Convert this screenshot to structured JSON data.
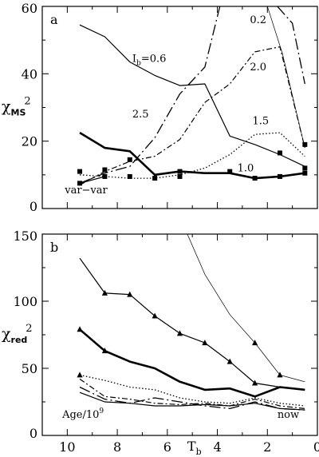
{
  "chart_data": [
    {
      "type": "line",
      "panel_label": "a",
      "ylabel_main": "χ",
      "ylabel_sub": "MS",
      "ylabel_sup": "2",
      "xlim": [
        11,
        0
      ],
      "ylim": [
        0,
        60
      ],
      "yticks": [
        "0",
        "20",
        "40",
        "60"
      ],
      "grid": false,
      "series": [
        {
          "name": "0.6",
          "style": "solid-thin",
          "x": [
            9.5,
            8.5,
            7.5,
            6.5,
            5.5,
            4.5,
            3.5,
            2.5,
            1.5,
            0.5
          ],
          "y": [
            54.5,
            51,
            43.5,
            39.5,
            36.5,
            37,
            21.5,
            19,
            16,
            12.5
          ]
        },
        {
          "name": "2.5",
          "style": "dashdot-long",
          "x": [
            9.5,
            8.5,
            7.5,
            6.5,
            5.5,
            4.5,
            3.9
          ],
          "y": [
            7.5,
            10.5,
            12.5,
            21,
            34,
            42,
            60
          ]
        },
        {
          "name": "2.0",
          "style": "dashdot",
          "x": [
            9.5,
            8.5,
            7.5,
            6.5,
            5.5,
            4.5,
            3.5,
            2.5,
            1.5,
            0.5
          ],
          "y": [
            7,
            11,
            14,
            15.5,
            20.5,
            31.5,
            37,
            46.5,
            48,
            18
          ]
        },
        {
          "name": "0.2",
          "style": "solid-hairline",
          "x": [
            2.9,
            2.0,
            1.4,
            0.5
          ],
          "y": [
            60,
            60,
            46,
            18
          ]
        },
        {
          "name": "",
          "style": "dashdot-long",
          "x": [
            1.6,
            1.0,
            0.5
          ],
          "y": [
            60,
            55,
            37
          ]
        },
        {
          "name": "1.5",
          "style": "dotted",
          "x": [
            9.5,
            8.5,
            7.5,
            6.5,
            5.5,
            4.5,
            3.5,
            2.5,
            1.5,
            0.5
          ],
          "y": [
            10,
            9.5,
            9,
            9,
            10,
            12,
            16,
            22,
            22.5,
            15.5
          ]
        },
        {
          "name": "1.0",
          "style": "solid-thick",
          "x": [
            9.5,
            8.5,
            7.5,
            6.5,
            5.5,
            4.5,
            3.5,
            2.5,
            1.5,
            0.5
          ],
          "y": [
            22.5,
            18,
            17,
            10,
            11,
            10.5,
            10.5,
            9,
            9.5,
            10.5
          ]
        },
        {
          "name": "var-var",
          "style": "solid-thin",
          "x": [
            9.5,
            8.5
          ],
          "y": [
            7.5,
            9.5
          ]
        }
      ],
      "markers": {
        "square": [
          [
            9.5,
            11
          ],
          [
            9.5,
            7.5
          ],
          [
            8.5,
            11.5
          ],
          [
            8.5,
            9.5
          ],
          [
            7.5,
            14.5
          ],
          [
            7.5,
            9.5
          ],
          [
            6.5,
            9
          ],
          [
            5.5,
            9.5
          ],
          [
            5.5,
            11
          ],
          [
            3.5,
            11
          ],
          [
            2.5,
            9
          ],
          [
            1.5,
            16.5
          ],
          [
            1.5,
            9.5
          ],
          [
            0.5,
            19
          ],
          [
            0.5,
            12
          ],
          [
            0.5,
            10.5
          ]
        ]
      },
      "annotations": [
        {
          "text": "I",
          "sub": "b",
          "rest": "=0.6",
          "x": 7.4,
          "y": 43.5
        },
        {
          "text": "2.5",
          "x": 7.4,
          "y": 27
        },
        {
          "text": "2.0",
          "x": 2.7,
          "y": 41
        },
        {
          "text": "0.2",
          "x": 2.7,
          "y": 55
        },
        {
          "text": "1.5",
          "x": 2.6,
          "y": 25
        },
        {
          "text": "1.0",
          "x": 3.2,
          "y": 11
        },
        {
          "text": "var−var",
          "x": 10.1,
          "y": 4.5
        }
      ]
    },
    {
      "type": "line",
      "panel_label": "b",
      "ylabel_main": "χ",
      "ylabel_sub": "red",
      "ylabel_sup": "2",
      "xlabel_main": "T",
      "xlabel_sub": "b",
      "xlim": [
        11,
        0
      ],
      "ylim": [
        0,
        150
      ],
      "xticks": [
        "10",
        "8",
        "6",
        "4",
        "2",
        "0"
      ],
      "yticks": [
        "0",
        "50",
        "100",
        "150"
      ],
      "grid": false,
      "series": [
        {
          "name": "triangle-solid-thin",
          "style": "solid-thin",
          "x": [
            9.5,
            8.5,
            7.5,
            6.5,
            5.5,
            4.5,
            3.5,
            2.5,
            1.5,
            0.5
          ],
          "y": [
            132,
            106,
            105,
            89,
            76,
            69,
            55,
            39,
            36,
            34
          ]
        },
        {
          "name": "triangle-solid-thick",
          "style": "solid-thick",
          "x": [
            9.5,
            8.5,
            7.5,
            6.5,
            5.5,
            4.5,
            3.5,
            2.5,
            1.5,
            0.5
          ],
          "y": [
            79,
            63,
            55,
            50,
            40,
            34,
            35,
            29,
            36,
            34
          ]
        },
        {
          "name": "hairline",
          "style": "solid-hairline",
          "x": [
            5.2,
            4.5,
            3.5,
            2.5,
            1.5,
            0.5
          ],
          "y": [
            150,
            120,
            90,
            69,
            45,
            40
          ]
        },
        {
          "name": "dotted",
          "style": "dotted",
          "x": [
            9.5,
            8.5,
            7.5,
            6.5,
            5.5,
            4.5,
            3.5,
            2.5,
            1.5,
            0.5
          ],
          "y": [
            45,
            41,
            36,
            34,
            28,
            25,
            24,
            28,
            24,
            22
          ]
        },
        {
          "name": "dashdot",
          "style": "dashdot",
          "x": [
            9.5,
            8.5,
            7.5,
            6.5,
            5.5,
            4.5,
            3.5,
            2.5,
            1.5,
            0.5
          ],
          "y": [
            42,
            29,
            27,
            24,
            23,
            24,
            22,
            27,
            22,
            20
          ]
        },
        {
          "name": "dashdot-long",
          "style": "dashdot-long",
          "x": [
            9.5,
            8.5,
            7.5,
            6.5,
            5.5,
            4.5,
            3.5,
            2.5,
            1.5,
            0.5
          ],
          "y": [
            36,
            27,
            24,
            28,
            25,
            22,
            20,
            25,
            20,
            19
          ]
        },
        {
          "name": "solid-thin-low",
          "style": "solid-thin",
          "x": [
            9.5,
            8.5,
            7.5,
            6.5,
            5.5,
            4.5,
            3.5,
            2.5,
            1.5,
            0.5
          ],
          "y": [
            32,
            25,
            24,
            22,
            22,
            23,
            22,
            24,
            20,
            19
          ]
        }
      ],
      "markers": {
        "triangle": [
          [
            9.5,
            45
          ],
          [
            8.5,
            106
          ],
          [
            7.5,
            105
          ],
          [
            6.5,
            89
          ],
          [
            5.5,
            76
          ],
          [
            4.5,
            69
          ],
          [
            3.5,
            55
          ],
          [
            2.5,
            69
          ],
          [
            2.5,
            39
          ],
          [
            1.5,
            45
          ],
          [
            9.5,
            79
          ],
          [
            8.5,
            63
          ]
        ]
      },
      "annotations": [
        {
          "text": "Age/10",
          "sup": "9",
          "x": 10.2,
          "y": 13
        },
        {
          "text": "now",
          "x": 1.6,
          "y": 13
        }
      ]
    }
  ]
}
